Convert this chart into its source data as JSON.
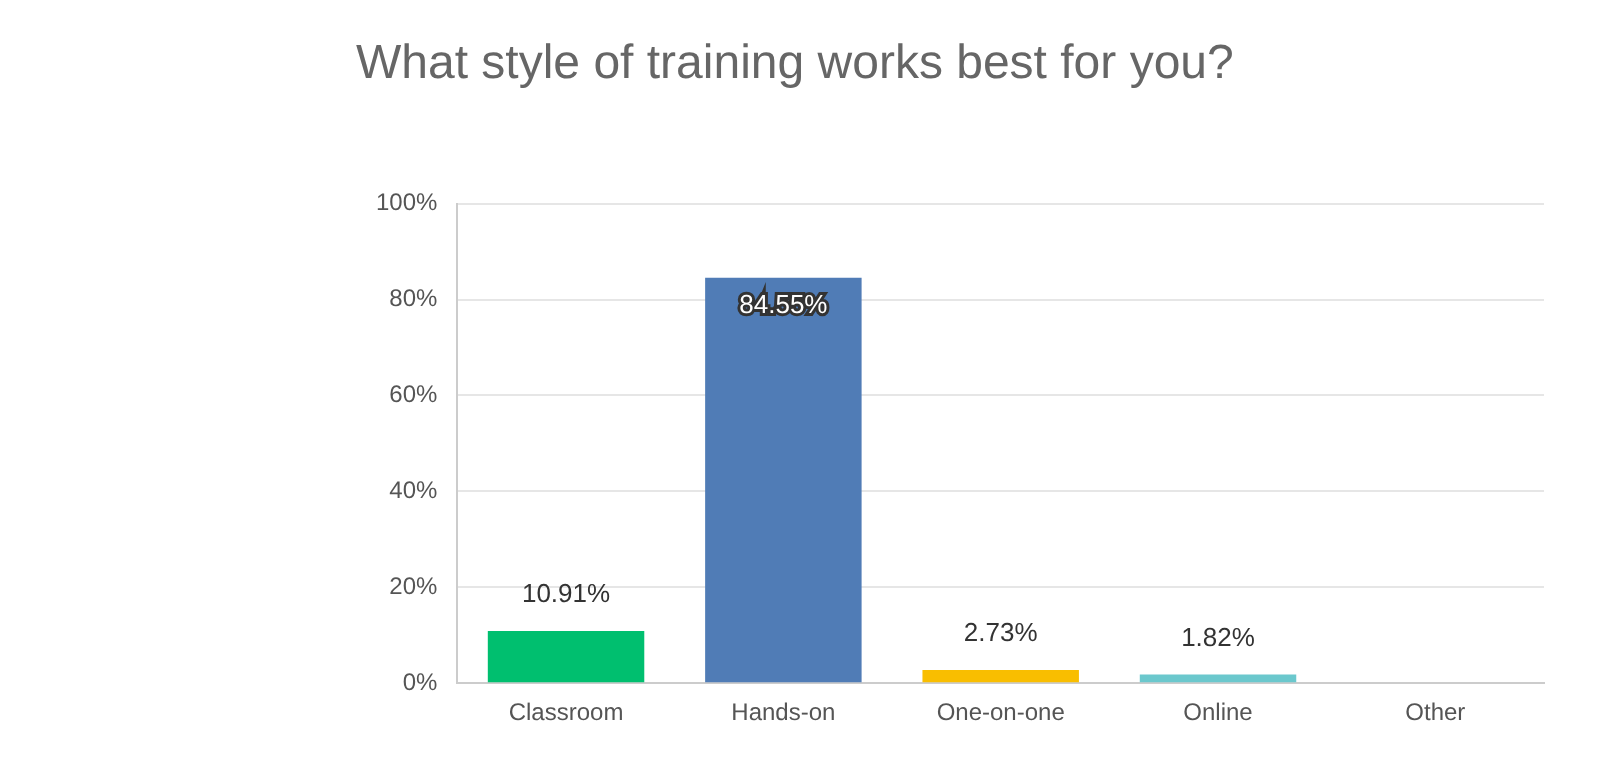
{
  "chart_data": {
    "type": "bar",
    "title": "What style of training works best for you?",
    "categories": [
      "Classroom",
      "Hands-on",
      "One-on-one",
      "Online",
      "Other"
    ],
    "values": [
      10.91,
      84.55,
      2.73,
      1.82,
      0
    ],
    "colors": [
      "#00bf6f",
      "#507cb6",
      "#f9be00",
      "#6bc8cd",
      "#d25f90"
    ],
    "value_labels": [
      "10.91%",
      "84.55%",
      "2.73%",
      "1.82%",
      null
    ],
    "ylim": [
      0,
      100
    ],
    "yticks": [
      {
        "value": 0,
        "label": "0%"
      },
      {
        "value": 20,
        "label": "20%"
      },
      {
        "value": 40,
        "label": "40%"
      },
      {
        "value": 60,
        "label": "60%"
      },
      {
        "value": 80,
        "label": "80%"
      },
      {
        "value": 100,
        "label": "100%"
      }
    ],
    "grid": "y",
    "legend": false
  }
}
